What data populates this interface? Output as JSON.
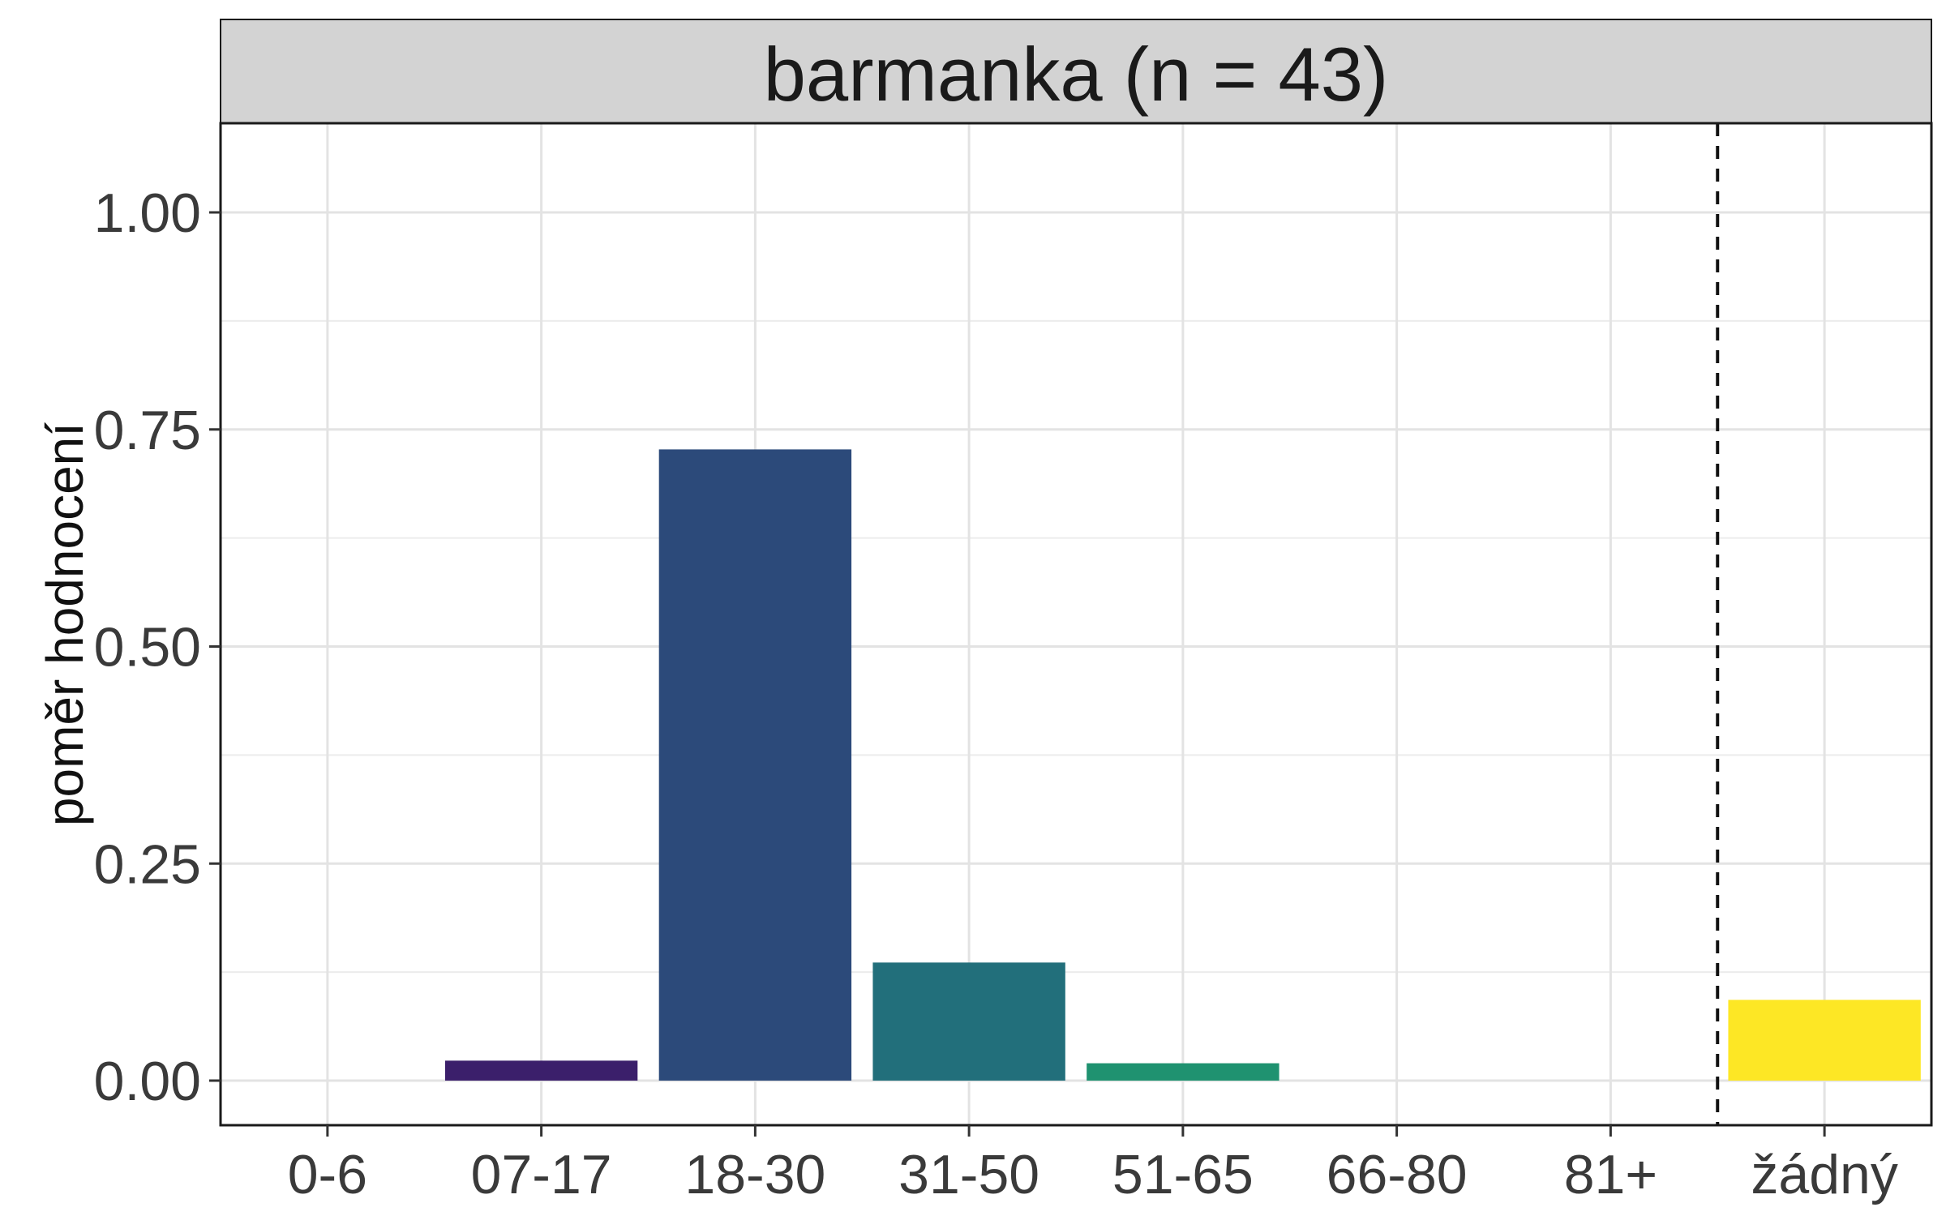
{
  "chart_data": {
    "type": "bar",
    "facet_title": "barmanka (n = 43)",
    "xlabel": "",
    "ylabel": "poměr hodnocení",
    "categories": [
      "0-6",
      "07-17",
      "18-30",
      "31-50",
      "51-65",
      "66-80",
      "81+",
      "žádný"
    ],
    "values": [
      0,
      0.023,
      0.727,
      0.136,
      0.02,
      0,
      0,
      0.093
    ],
    "colors": [
      "#440154",
      "#3b1f6b",
      "#2c4a7a",
      "#226f7b",
      "#1f9270",
      "#5ec962",
      "#b8de29",
      "#fde725"
    ],
    "ylim": [
      0,
      1.1
    ],
    "yticks": [
      0,
      0.25,
      0.5,
      0.75,
      1.0
    ],
    "ytick_labels": [
      "0.00",
      "0.25",
      "0.50",
      "0.75",
      "1.00"
    ],
    "reference_line": {
      "style": "dashed",
      "between": [
        "81+",
        "žádný"
      ]
    },
    "grid": true,
    "legend": "none"
  }
}
